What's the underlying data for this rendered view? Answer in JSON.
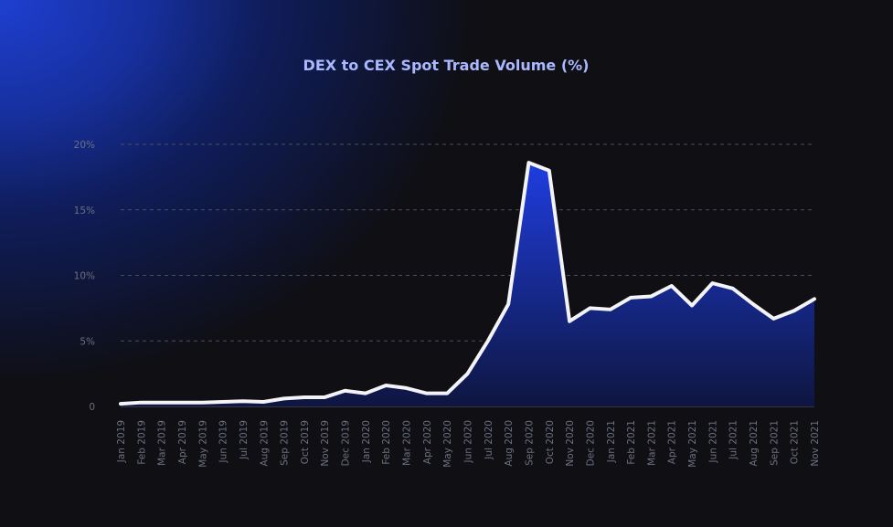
{
  "chart_data": {
    "type": "area",
    "title": "DEX to CEX Spot Trade Volume (%)",
    "xlabel": "",
    "ylabel": "",
    "ylim": [
      0,
      20
    ],
    "yticks": [
      {
        "value": 0,
        "label": "0"
      },
      {
        "value": 5,
        "label": "5%"
      },
      {
        "value": 10,
        "label": "10%"
      },
      {
        "value": 15,
        "label": "15%"
      },
      {
        "value": 20,
        "label": "20%"
      }
    ],
    "grid": true,
    "legend": "none",
    "categories": [
      "Jan 2019",
      "Feb 2019",
      "Mar 2019",
      "Apr 2019",
      "May 2019",
      "Jun 2019",
      "Jul 2019",
      "Aug 2019",
      "Sep 2019",
      "Oct 2019",
      "Nov 2019",
      "Dec 2019",
      "Jan 2020",
      "Feb 2020",
      "Mar 2020",
      "Apr 2020",
      "May 2020",
      "Jun 2020",
      "Jul 2020",
      "Aug 2020",
      "Sep 2020",
      "Oct 2020",
      "Nov 2020",
      "Dec 2020",
      "Jan 2021",
      "Feb 2021",
      "Mar 2021",
      "Apr 2021",
      "May 2021",
      "Jun 2021",
      "Jul 2021",
      "Aug 2021",
      "Sep 2021",
      "Oct 2021",
      "Nov 2021"
    ],
    "series": [
      {
        "values": [
          0.2,
          0.3,
          0.3,
          0.3,
          0.3,
          0.35,
          0.4,
          0.35,
          0.6,
          0.7,
          0.7,
          1.2,
          1.0,
          1.6,
          1.4,
          1.0,
          1.0,
          2.5,
          5.0,
          7.8,
          18.6,
          18.0,
          6.5,
          7.5,
          7.4,
          8.3,
          8.4,
          9.2,
          7.7,
          9.4,
          9.0,
          7.8,
          6.7,
          7.3,
          8.2
        ]
      }
    ],
    "colors": {
      "line": "#f4f4f8",
      "fill_top": "#1f3de0",
      "fill_bottom": "#0e1640"
    }
  }
}
